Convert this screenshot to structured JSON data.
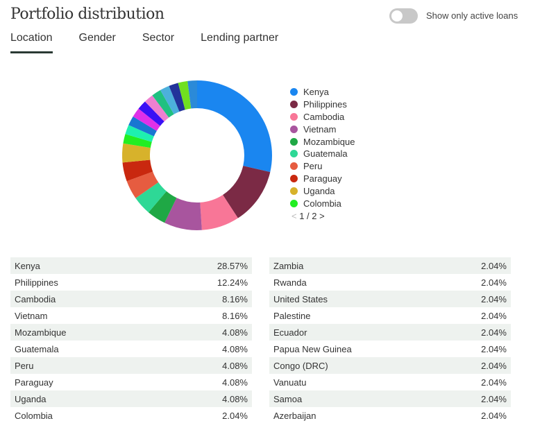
{
  "header": {
    "title": "Portfolio distribution",
    "toggle_label": "Show only active loans",
    "toggle_on": false
  },
  "tabs": [
    {
      "label": "Location",
      "active": true
    },
    {
      "label": "Gender"
    },
    {
      "label": "Sector"
    },
    {
      "label": "Lending partner"
    }
  ],
  "legend": {
    "page": "1 / 2",
    "prev": "<",
    "next": ">"
  },
  "chart_data": {
    "type": "pie",
    "slices": [
      {
        "name": "Kenya",
        "value": 28.57,
        "color": "#1a86f0"
      },
      {
        "name": "Philippines",
        "value": 12.24,
        "color": "#7b2a45"
      },
      {
        "name": "Cambodia",
        "value": 8.16,
        "color": "#f87697"
      },
      {
        "name": "Vietnam",
        "value": 8.16,
        "color": "#a8559e"
      },
      {
        "name": "Mozambique",
        "value": 4.08,
        "color": "#1fa845"
      },
      {
        "name": "Guatemala",
        "value": 4.08,
        "color": "#2ed896"
      },
      {
        "name": "Peru",
        "value": 4.08,
        "color": "#e65c40"
      },
      {
        "name": "Paraguay",
        "value": 4.08,
        "color": "#c9280f"
      },
      {
        "name": "Uganda",
        "value": 4.08,
        "color": "#d7b22b"
      },
      {
        "name": "Colombia",
        "value": 2.04,
        "color": "#22ee22"
      },
      {
        "name": "Zambia",
        "value": 2.04,
        "color": "#1ef0b0"
      },
      {
        "name": "Rwanda",
        "value": 2.04,
        "color": "#1976d2"
      },
      {
        "name": "United States",
        "value": 2.04,
        "color": "#e030e8"
      },
      {
        "name": "Palestine",
        "value": 2.04,
        "color": "#3a10f5"
      },
      {
        "name": "Ecuador",
        "value": 2.04,
        "color": "#ee80d0"
      },
      {
        "name": "Papua New Guinea",
        "value": 2.04,
        "color": "#20c080"
      },
      {
        "name": "Congo (DRC)",
        "value": 2.04,
        "color": "#4cb0dc"
      },
      {
        "name": "Vanuatu",
        "value": 2.04,
        "color": "#22339a"
      },
      {
        "name": "Samoa",
        "value": 2.04,
        "color": "#70e020"
      },
      {
        "name": "Azerbaijan",
        "value": 2.04,
        "color": "#2b8ad8"
      }
    ]
  },
  "table_left": [
    {
      "country": "Kenya",
      "pct": "28.57%"
    },
    {
      "country": "Philippines",
      "pct": "12.24%"
    },
    {
      "country": "Cambodia",
      "pct": "8.16%"
    },
    {
      "country": "Vietnam",
      "pct": "8.16%"
    },
    {
      "country": "Mozambique",
      "pct": "4.08%"
    },
    {
      "country": "Guatemala",
      "pct": "4.08%"
    },
    {
      "country": "Peru",
      "pct": "4.08%"
    },
    {
      "country": "Paraguay",
      "pct": "4.08%"
    },
    {
      "country": "Uganda",
      "pct": "4.08%"
    },
    {
      "country": "Colombia",
      "pct": "2.04%"
    }
  ],
  "table_right": [
    {
      "country": "Zambia",
      "pct": "2.04%"
    },
    {
      "country": "Rwanda",
      "pct": "2.04%"
    },
    {
      "country": "United States",
      "pct": "2.04%"
    },
    {
      "country": "Palestine",
      "pct": "2.04%"
    },
    {
      "country": "Ecuador",
      "pct": "2.04%"
    },
    {
      "country": "Papua New Guinea",
      "pct": "2.04%"
    },
    {
      "country": "Congo (DRC)",
      "pct": "2.04%"
    },
    {
      "country": "Vanuatu",
      "pct": "2.04%"
    },
    {
      "country": "Samoa",
      "pct": "2.04%"
    },
    {
      "country": "Azerbaijan",
      "pct": "2.04%"
    }
  ]
}
